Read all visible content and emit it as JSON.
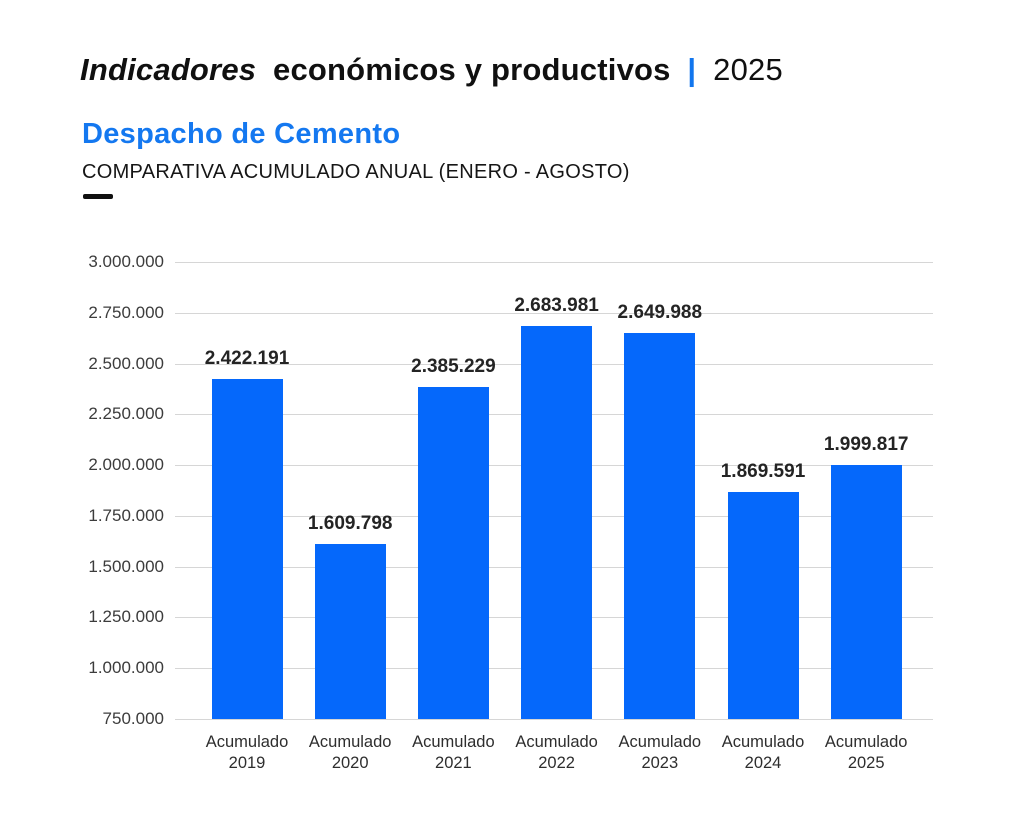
{
  "header": {
    "title_italic": "Indicadores",
    "title_rest": "económicos y productivos",
    "title_separator": "|",
    "title_year": "2025",
    "subtitle": "Despacho de Cemento",
    "section_label": "COMPARATIVA ACUMULADO ANUAL (ENERO - AGOSTO)"
  },
  "colors": {
    "bar_blue": "#0568fb",
    "accent_blue": "#1478f0",
    "gridline": "#d6d6d6",
    "title_text": "#101010",
    "axis_text": "#3c3c3c",
    "value_label_text": "#242424"
  },
  "chart_data": {
    "type": "bar",
    "title": "Despacho de Cemento",
    "subtitle": "COMPARATIVA ACUMULADO ANUAL (ENERO - AGOSTO)",
    "categories": [
      "Acumulado 2019",
      "Acumulado 2020",
      "Acumulado 2021",
      "Acumulado 2022",
      "Acumulado 2023",
      "Acumulado 2024",
      "Acumulado 2025"
    ],
    "values": [
      2422191,
      1609798,
      2385229,
      2683981,
      2649988,
      1869591,
      1999817
    ],
    "value_labels": [
      "2.422.191",
      "1.609.798",
      "2.385.229",
      "2.683.981",
      "2.649.988",
      "1.869.591",
      "1.999.817"
    ],
    "xlabel": "",
    "ylabel": "",
    "ylim": [
      750000,
      3000000
    ],
    "ytick_values": [
      750000,
      1000000,
      1250000,
      1500000,
      1750000,
      2000000,
      2250000,
      2500000,
      2750000,
      3000000
    ],
    "ytick_labels": [
      "750.000",
      "1.000.000",
      "1.250.000",
      "1.500.000",
      "1.750.000",
      "2.000.000",
      "2.250.000",
      "2.500.000",
      "2.750.000",
      "3.000.000"
    ],
    "grid": true,
    "legend": false,
    "bar_color": "#0568fb"
  }
}
